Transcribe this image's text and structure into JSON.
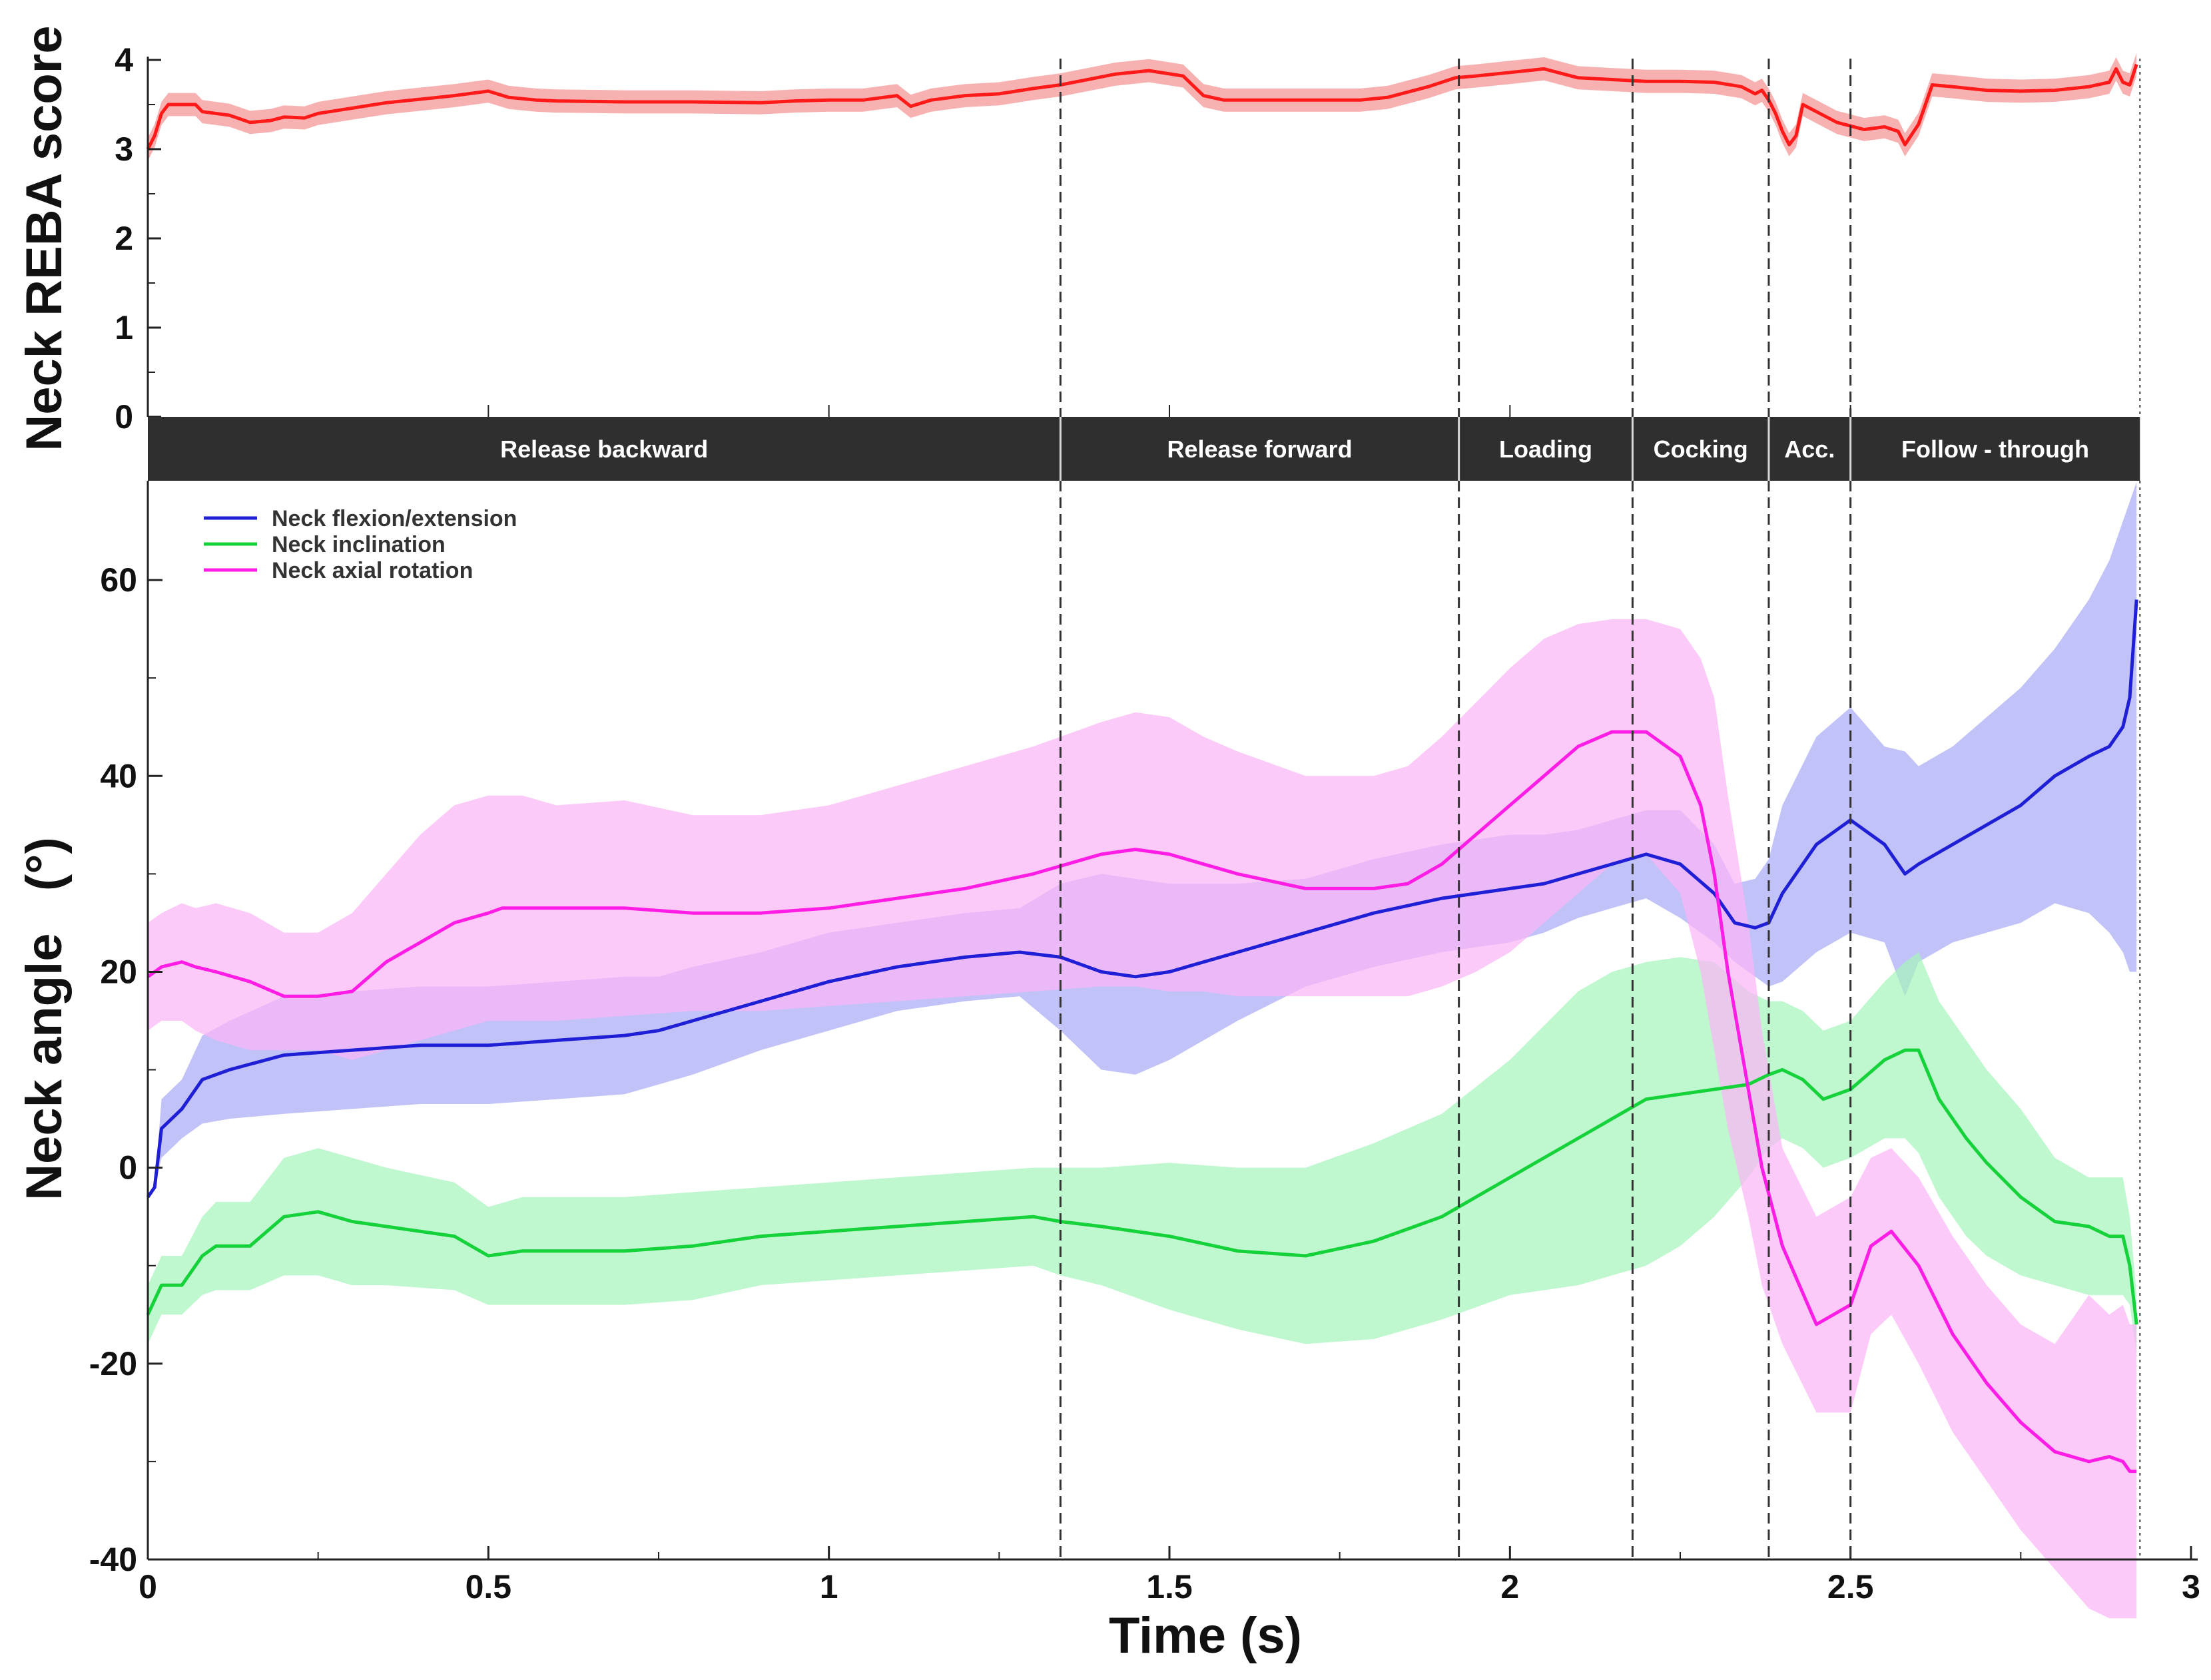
{
  "chart_data": [
    {
      "type": "line",
      "panel": "top",
      "ylabel": "Neck REBA score",
      "xlim": [
        0,
        3
      ],
      "ylim": [
        0,
        4
      ],
      "yticks": [
        0,
        1,
        2,
        3,
        4
      ],
      "grid": false,
      "series": [
        {
          "name": "Neck REBA score",
          "color": "#ff1a1a",
          "band_color": "#f7a8a8",
          "band_halfwidth": 0.13,
          "x": [
            0,
            0.01,
            0.02,
            0.03,
            0.06,
            0.07,
            0.08,
            0.12,
            0.15,
            0.18,
            0.2,
            0.23,
            0.25,
            0.3,
            0.35,
            0.4,
            0.45,
            0.5,
            0.53,
            0.57,
            0.6,
            0.7,
            0.8,
            0.9,
            0.95,
            1.0,
            1.05,
            1.1,
            1.12,
            1.15,
            1.2,
            1.25,
            1.3,
            1.34,
            1.38,
            1.42,
            1.47,
            1.52,
            1.55,
            1.58,
            1.62,
            1.7,
            1.78,
            1.82,
            1.88,
            1.92,
            1.95,
            2.0,
            2.05,
            2.1,
            2.15,
            2.2,
            2.25,
            2.3,
            2.34,
            2.36,
            2.37,
            2.38,
            2.39,
            2.4,
            2.41,
            2.42,
            2.43,
            2.45,
            2.48,
            2.52,
            2.55,
            2.57,
            2.58,
            2.6,
            2.61,
            2.62,
            2.65,
            2.7,
            2.75,
            2.8,
            2.85,
            2.88,
            2.89,
            2.9,
            2.91,
            2.92
          ],
          "values": [
            3.0,
            3.15,
            3.4,
            3.5,
            3.5,
            3.5,
            3.42,
            3.38,
            3.3,
            3.32,
            3.36,
            3.35,
            3.4,
            3.46,
            3.52,
            3.56,
            3.6,
            3.65,
            3.58,
            3.55,
            3.54,
            3.53,
            3.53,
            3.52,
            3.54,
            3.55,
            3.55,
            3.6,
            3.48,
            3.55,
            3.6,
            3.62,
            3.68,
            3.72,
            3.78,
            3.84,
            3.88,
            3.82,
            3.6,
            3.55,
            3.55,
            3.55,
            3.55,
            3.58,
            3.7,
            3.8,
            3.82,
            3.86,
            3.9,
            3.8,
            3.78,
            3.76,
            3.76,
            3.75,
            3.7,
            3.62,
            3.66,
            3.55,
            3.4,
            3.2,
            3.05,
            3.15,
            3.5,
            3.42,
            3.3,
            3.22,
            3.25,
            3.2,
            3.05,
            3.28,
            3.5,
            3.72,
            3.7,
            3.66,
            3.65,
            3.66,
            3.7,
            3.75,
            3.9,
            3.75,
            3.72,
            3.95
          ]
        }
      ]
    },
    {
      "type": "line",
      "panel": "bottom",
      "xlabel": "Time (s)",
      "ylabel": "Neck angle   (°)",
      "xlim": [
        0,
        3
      ],
      "ylim": [
        -40,
        70
      ],
      "xticks": [
        0,
        0.5,
        1,
        1.5,
        2,
        2.5,
        3
      ],
      "xtick_labels": [
        "0",
        "0.5",
        "1",
        "1.5",
        "2",
        "2.5",
        "3"
      ],
      "yticks": [
        -40,
        -20,
        0,
        20,
        40,
        60
      ],
      "yticks_minor": [
        -30,
        -10,
        10,
        30,
        50
      ],
      "grid": false,
      "legend_position": "top-left",
      "series": [
        {
          "name": "Neck flexion/extension",
          "color": "#1f1fd6",
          "band_color": "#a9aaf5",
          "x": [
            0,
            0.01,
            0.02,
            0.05,
            0.08,
            0.12,
            0.2,
            0.3,
            0.4,
            0.5,
            0.6,
            0.7,
            0.75,
            0.8,
            0.9,
            1.0,
            1.1,
            1.2,
            1.28,
            1.34,
            1.4,
            1.45,
            1.5,
            1.6,
            1.7,
            1.8,
            1.9,
            2.0,
            2.05,
            2.1,
            2.15,
            2.2,
            2.25,
            2.3,
            2.33,
            2.36,
            2.38,
            2.4,
            2.45,
            2.5,
            2.55,
            2.58,
            2.6,
            2.65,
            2.7,
            2.75,
            2.8,
            2.85,
            2.88,
            2.9,
            2.91,
            2.92
          ],
          "values": [
            -3,
            -2,
            4,
            6,
            9,
            10,
            11.5,
            12,
            12.5,
            12.5,
            13,
            13.5,
            14,
            15,
            17,
            19,
            20.5,
            21.5,
            22,
            21.5,
            20,
            19.5,
            20,
            22,
            24,
            26,
            27.5,
            28.5,
            29,
            30,
            31,
            32,
            31,
            28,
            25,
            24.5,
            25,
            28,
            33,
            35.5,
            33,
            30,
            31,
            33,
            35,
            37,
            40,
            42,
            43,
            45,
            48,
            58
          ],
          "band_lower": [
            -3,
            -2,
            1,
            3,
            4.5,
            5,
            5.5,
            6,
            6.5,
            6.5,
            7,
            7.5,
            8.5,
            9.5,
            12,
            14,
            16,
            17,
            17.5,
            14,
            10,
            9.5,
            11,
            15,
            18.5,
            20.5,
            22,
            23,
            24,
            25.5,
            26.5,
            27.5,
            25.5,
            23,
            21,
            19.5,
            18.5,
            19,
            22,
            24,
            23,
            17.5,
            21,
            23,
            24,
            25,
            27,
            26,
            24,
            22,
            20,
            20
          ],
          "band_upper": [
            -3,
            -2,
            7,
            9,
            13.5,
            15,
            17.5,
            18,
            18.5,
            18.5,
            19,
            19.5,
            19.5,
            20.5,
            22,
            24,
            25,
            26,
            26.5,
            29,
            30,
            29.5,
            29,
            29,
            29.5,
            31.5,
            33,
            34,
            34,
            34.5,
            35.5,
            36.5,
            36.5,
            33,
            29,
            29.5,
            31.5,
            37,
            44,
            47,
            43,
            42.5,
            41,
            43,
            46,
            49,
            53,
            58,
            62,
            66,
            68,
            70
          ]
        },
        {
          "name": "Neck inclination",
          "color": "#15d13a",
          "band_color": "#a6f4bd",
          "x": [
            0,
            0.02,
            0.05,
            0.08,
            0.1,
            0.15,
            0.2,
            0.25,
            0.3,
            0.35,
            0.45,
            0.5,
            0.55,
            0.6,
            0.7,
            0.8,
            0.9,
            1.0,
            1.1,
            1.2,
            1.3,
            1.34,
            1.4,
            1.5,
            1.6,
            1.7,
            1.8,
            1.9,
            2.0,
            2.1,
            2.15,
            2.2,
            2.25,
            2.3,
            2.35,
            2.38,
            2.4,
            2.43,
            2.46,
            2.5,
            2.55,
            2.58,
            2.6,
            2.63,
            2.67,
            2.7,
            2.75,
            2.8,
            2.85,
            2.88,
            2.9,
            2.91,
            2.92
          ],
          "values": [
            -15,
            -12,
            -12,
            -9,
            -8,
            -8,
            -5,
            -4.5,
            -5.5,
            -6,
            -7,
            -9,
            -8.5,
            -8.5,
            -8.5,
            -8,
            -7,
            -6.5,
            -6,
            -5.5,
            -5,
            -5.5,
            -6,
            -7,
            -8.5,
            -9,
            -7.5,
            -5,
            -1,
            3,
            5,
            7,
            7.5,
            8,
            8.5,
            9.5,
            10,
            9,
            7,
            8,
            11,
            12,
            12,
            7,
            3,
            0.5,
            -3,
            -5.5,
            -6,
            -7,
            -7,
            -10,
            -16
          ],
          "band_lower": [
            -18,
            -15,
            -15,
            -13,
            -12.5,
            -12.5,
            -11,
            -11,
            -12,
            -12,
            -12.5,
            -14,
            -14,
            -14,
            -14,
            -13.5,
            -12,
            -11.5,
            -11,
            -10.5,
            -10,
            -11,
            -12,
            -14.5,
            -16.5,
            -18,
            -17.5,
            -15.5,
            -13,
            -12,
            -11,
            -10,
            -8,
            -5,
            -1,
            2,
            3,
            2,
            0,
            1,
            3,
            3,
            1.5,
            -3,
            -7,
            -9,
            -11,
            -12,
            -13,
            -13,
            -13,
            -14,
            -19
          ],
          "band_upper": [
            -12,
            -9,
            -9,
            -5,
            -3.5,
            -3.5,
            1,
            2,
            1,
            0,
            -1.5,
            -4,
            -3,
            -3,
            -3,
            -2.5,
            -2,
            -1.5,
            -1,
            -0.5,
            0,
            0,
            0,
            0.5,
            0,
            0,
            2.5,
            5.5,
            11,
            18,
            20,
            21,
            21.5,
            21,
            18,
            17,
            17,
            16,
            14,
            15,
            19,
            21,
            22,
            17,
            13,
            10,
            6,
            1,
            -1,
            -1,
            -1,
            -5,
            -13
          ]
        },
        {
          "name": "Neck axial rotation",
          "color": "#ff1de6",
          "band_color": "#fbb6f7",
          "x": [
            0,
            0.02,
            0.05,
            0.07,
            0.1,
            0.15,
            0.2,
            0.25,
            0.3,
            0.35,
            0.4,
            0.45,
            0.5,
            0.52,
            0.55,
            0.6,
            0.7,
            0.8,
            0.9,
            1.0,
            1.1,
            1.2,
            1.3,
            1.4,
            1.45,
            1.5,
            1.55,
            1.6,
            1.7,
            1.8,
            1.85,
            1.9,
            1.95,
            2.0,
            2.05,
            2.1,
            2.15,
            2.2,
            2.25,
            2.28,
            2.3,
            2.32,
            2.35,
            2.37,
            2.4,
            2.45,
            2.5,
            2.53,
            2.56,
            2.6,
            2.65,
            2.7,
            2.75,
            2.8,
            2.85,
            2.88,
            2.9,
            2.91,
            2.92
          ],
          "values": [
            19.5,
            20.5,
            21,
            20.5,
            20,
            19,
            17.5,
            17.5,
            18,
            21,
            23,
            25,
            26,
            26.5,
            26.5,
            26.5,
            26.5,
            26,
            26,
            26.5,
            27.5,
            28.5,
            30,
            32,
            32.5,
            32,
            31,
            30,
            28.5,
            28.5,
            29,
            31,
            34,
            37,
            40,
            43,
            44.5,
            44.5,
            42,
            37,
            30,
            20,
            8,
            0,
            -8,
            -16,
            -14,
            -8,
            -6.5,
            -10,
            -17,
            -22,
            -26,
            -29,
            -30,
            -29.5,
            -30,
            -31,
            -31
          ],
          "band_lower": [
            14,
            15,
            15,
            14,
            13,
            12,
            12,
            12,
            11,
            12,
            13,
            14,
            15,
            15,
            15,
            15,
            15.5,
            16,
            16,
            16.5,
            17,
            17.5,
            18,
            18.5,
            18.5,
            18,
            18,
            17.5,
            17.5,
            17.5,
            17.5,
            18.5,
            20,
            22,
            25,
            28,
            31,
            32,
            28,
            20,
            12,
            4,
            -5,
            -12,
            -18,
            -25,
            -25,
            -17,
            -15,
            -20,
            -27,
            -32,
            -37,
            -41,
            -45,
            -46,
            -46,
            -46,
            -46
          ],
          "band_upper": [
            25,
            26,
            27,
            26.5,
            27,
            26,
            24,
            24,
            26,
            30,
            34,
            37,
            38,
            38,
            38,
            37,
            37.5,
            36,
            36,
            37,
            39,
            41,
            43,
            45.5,
            46.5,
            46,
            44,
            42.5,
            40,
            40,
            41,
            44,
            47.5,
            51,
            54,
            55.5,
            56,
            56,
            55,
            52,
            48,
            38,
            25,
            14,
            2,
            -5,
            -3,
            1,
            2,
            -1,
            -7,
            -12,
            -16,
            -18,
            -13,
            -15,
            -14,
            -16,
            -16
          ]
        }
      ]
    }
  ],
  "phases": [
    {
      "label": "Release backward",
      "start": 0,
      "end": 1.34
    },
    {
      "label": "Release forward",
      "start": 1.34,
      "end": 1.925
    },
    {
      "label": "Loading",
      "start": 1.925,
      "end": 2.18
    },
    {
      "label": "Cocking",
      "start": 2.18,
      "end": 2.38
    },
    {
      "label": "Acc.",
      "start": 2.38,
      "end": 2.5
    },
    {
      "label": "Follow - through",
      "start": 2.5,
      "end": 2.925
    }
  ],
  "phase_boundaries": [
    1.34,
    1.925,
    2.18,
    2.38,
    2.5,
    2.925
  ]
}
